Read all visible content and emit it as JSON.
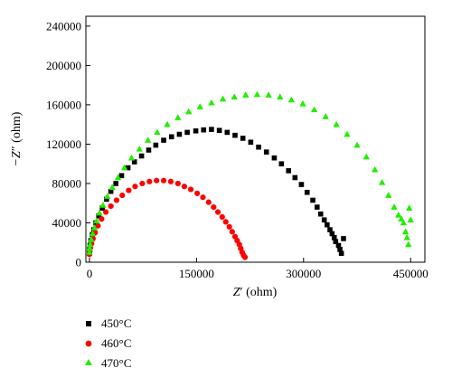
{
  "chart_data": {
    "type": "scatter",
    "title": "",
    "xlabel_main": "Z",
    "xlabel_prime": "′",
    "xlabel_unit": " (ohm)",
    "ylabel_main": "−Z",
    "ylabel_prime": "″",
    "ylabel_unit": " (ohm)",
    "xlim": [
      -5000,
      470000
    ],
    "ylim": [
      0,
      250000
    ],
    "xticks": [
      0,
      150000,
      300000,
      450000
    ],
    "xtick_labels": [
      "0",
      "150000",
      "300000",
      "450000"
    ],
    "yticks": [
      0,
      40000,
      80000,
      120000,
      160000,
      200000,
      240000
    ],
    "ytick_labels": [
      "0",
      "40000",
      "80000",
      "120000",
      "160000",
      "200000",
      "240000"
    ],
    "grid": false,
    "legend_placement": "below-left",
    "series": [
      {
        "name": "450°C",
        "marker": "square",
        "color": "#000000",
        "points": [
          [
            0,
            9000
          ],
          [
            200,
            13000
          ],
          [
            800,
            17000
          ],
          [
            2000,
            22000
          ],
          [
            4000,
            28000
          ],
          [
            6000,
            33000
          ],
          [
            9000,
            40000
          ],
          [
            13000,
            47000
          ],
          [
            18000,
            55000
          ],
          [
            24000,
            64000
          ],
          [
            30000,
            72000
          ],
          [
            37000,
            80000
          ],
          [
            45000,
            88000
          ],
          [
            54000,
            96000
          ],
          [
            63000,
            102000
          ],
          [
            73000,
            108000
          ],
          [
            83000,
            114000
          ],
          [
            93000,
            119000
          ],
          [
            104000,
            124000
          ],
          [
            115000,
            127500
          ],
          [
            126000,
            130000
          ],
          [
            137000,
            132000
          ],
          [
            149000,
            133500
          ],
          [
            160000,
            134500
          ],
          [
            171000,
            135000
          ],
          [
            182000,
            134000
          ],
          [
            193000,
            132000
          ],
          [
            204000,
            129000
          ],
          [
            215000,
            126000
          ],
          [
            226000,
            122000
          ],
          [
            237000,
            117000
          ],
          [
            248000,
            112000
          ],
          [
            259000,
            106000
          ],
          [
            269000,
            100000
          ],
          [
            279000,
            93000
          ],
          [
            288000,
            86000
          ],
          [
            297000,
            79000
          ],
          [
            305000,
            71000
          ],
          [
            313000,
            63000
          ],
          [
            319000,
            56000
          ],
          [
            324000,
            49000
          ],
          [
            329000,
            43000
          ],
          [
            333000,
            38000
          ],
          [
            337000,
            33000
          ],
          [
            340000,
            29000
          ],
          [
            343000,
            25000
          ],
          [
            345000,
            21000
          ],
          [
            349000,
            17000
          ],
          [
            351000,
            13000
          ],
          [
            353000,
            9000
          ],
          [
            356000,
            24000
          ]
        ]
      },
      {
        "name": "460°C",
        "marker": "circle",
        "color": "#ff0000",
        "points": [
          [
            0,
            8000
          ],
          [
            500,
            11000
          ],
          [
            1500,
            15000
          ],
          [
            3000,
            19000
          ],
          [
            5000,
            24000
          ],
          [
            8000,
            30000
          ],
          [
            12000,
            37000
          ],
          [
            17000,
            44000
          ],
          [
            23000,
            51000
          ],
          [
            30000,
            57000
          ],
          [
            38000,
            63000
          ],
          [
            46000,
            68000
          ],
          [
            55000,
            73000
          ],
          [
            64000,
            77000
          ],
          [
            74000,
            80000
          ],
          [
            84000,
            82000
          ],
          [
            94000,
            83000
          ],
          [
            104000,
            83000
          ],
          [
            114000,
            82000
          ],
          [
            124000,
            80000
          ],
          [
            133000,
            77000
          ],
          [
            142000,
            74000
          ],
          [
            151000,
            70000
          ],
          [
            159000,
            66000
          ],
          [
            167000,
            61000
          ],
          [
            174000,
            56000
          ],
          [
            180000,
            51000
          ],
          [
            186000,
            46000
          ],
          [
            191000,
            41000
          ],
          [
            196000,
            36000
          ],
          [
            200000,
            31000
          ],
          [
            204000,
            26000
          ],
          [
            207000,
            22000
          ],
          [
            210000,
            18000
          ],
          [
            212000,
            14000
          ],
          [
            214000,
            10000
          ],
          [
            216000,
            7000
          ],
          [
            218000,
            5000
          ]
        ]
      },
      {
        "name": "470°C",
        "marker": "triangle",
        "color": "#22ee00",
        "points": [
          [
            0,
            10000
          ],
          [
            300,
            14000
          ],
          [
            1000,
            18000
          ],
          [
            2500,
            23000
          ],
          [
            4500,
            29000
          ],
          [
            7000,
            35000
          ],
          [
            10000,
            42000
          ],
          [
            14000,
            50000
          ],
          [
            19000,
            58000
          ],
          [
            25000,
            67000
          ],
          [
            32000,
            76000
          ],
          [
            40000,
            86000
          ],
          [
            49000,
            96000
          ],
          [
            59000,
            106000
          ],
          [
            70000,
            115000
          ],
          [
            82000,
            124000
          ],
          [
            95000,
            132000
          ],
          [
            109000,
            140000
          ],
          [
            124000,
            147000
          ],
          [
            139000,
            153000
          ],
          [
            155000,
            158000
          ],
          [
            171000,
            162000
          ],
          [
            187000,
            166000
          ],
          [
            203000,
            168000
          ],
          [
            219000,
            170000
          ],
          [
            235000,
            170500
          ],
          [
            251000,
            170000
          ],
          [
            267000,
            168000
          ],
          [
            283000,
            165000
          ],
          [
            299000,
            161000
          ],
          [
            315000,
            155000
          ],
          [
            331000,
            148000
          ],
          [
            346000,
            140000
          ],
          [
            361000,
            130000
          ],
          [
            375000,
            119000
          ],
          [
            388000,
            107000
          ],
          [
            400000,
            94000
          ],
          [
            410000,
            81000
          ],
          [
            419000,
            68000
          ],
          [
            427000,
            56000
          ],
          [
            433000,
            48000
          ],
          [
            437000,
            44000
          ],
          [
            440000,
            40000
          ],
          [
            443000,
            31000
          ],
          [
            445000,
            25000
          ],
          [
            447000,
            18000
          ],
          [
            448000,
            55000
          ],
          [
            450000,
            43000
          ]
        ]
      }
    ]
  },
  "legend": {
    "items": [
      {
        "label": "450°C",
        "color": "#000000",
        "marker": "square"
      },
      {
        "label": "460°C",
        "color": "#ff0000",
        "marker": "circle"
      },
      {
        "label": "470°C",
        "color": "#22ee00",
        "marker": "triangle"
      }
    ]
  }
}
